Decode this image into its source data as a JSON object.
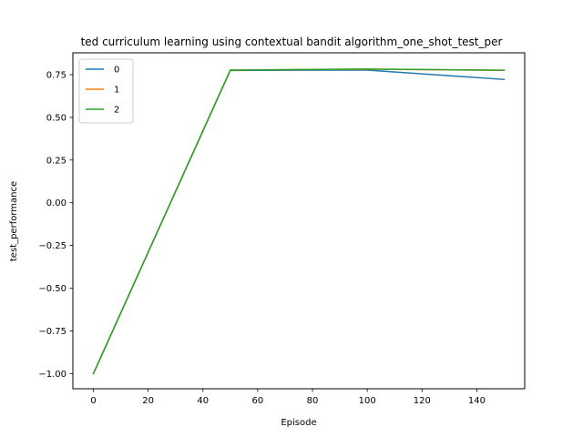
{
  "chart_data": {
    "type": "line",
    "title": "ted curriculum learning using contextual bandit algorithm_one_shot_test_per",
    "xlabel": "Episode",
    "ylabel": "test_performance",
    "xlim": [
      -7.5,
      157.5
    ],
    "ylim": [
      -1.089,
      0.878
    ],
    "xticks": [
      0,
      20,
      40,
      60,
      80,
      100,
      120,
      140
    ],
    "xtick_labels": [
      "0",
      "20",
      "40",
      "60",
      "80",
      "100",
      "120",
      "140"
    ],
    "yticks": [
      -1.0,
      -0.75,
      -0.5,
      -0.25,
      0.0,
      0.25,
      0.5,
      0.75
    ],
    "ytick_labels": [
      "−1.00",
      "−0.75",
      "−0.50",
      "−0.25",
      "0.00",
      "0.25",
      "0.50",
      "0.75"
    ],
    "grid": false,
    "legend": "top-left",
    "x": [
      0,
      50,
      100,
      150
    ],
    "series": [
      {
        "name": "0",
        "color": "#1f77b4",
        "values": [
          -1.0,
          0.775,
          0.777,
          0.722
        ]
      },
      {
        "name": "1",
        "color": "#ff7f0e",
        "values": [
          -1.0,
          0.777,
          0.782,
          0.775
        ]
      },
      {
        "name": "2",
        "color": "#2ca02c",
        "values": [
          -1.0,
          0.777,
          0.783,
          0.776
        ]
      }
    ]
  }
}
